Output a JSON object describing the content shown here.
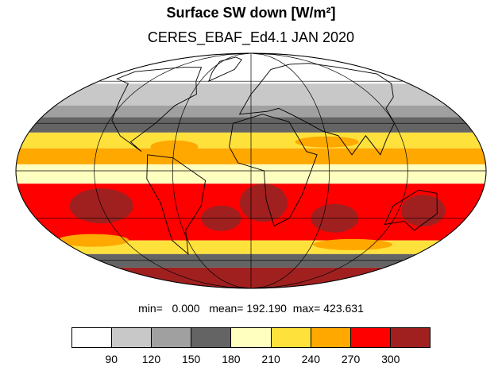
{
  "title": "Surface SW down [W/m²]",
  "subtitle": "CERES_EBAF_Ed4.1 JAN 2020",
  "stats": {
    "min_label": "min=",
    "min": "0.000",
    "mean_label": "mean=",
    "mean": "192.190",
    "max_label": "max=",
    "max": "423.631"
  },
  "colorbar": {
    "colors": [
      "#ffffff",
      "#c8c8c8",
      "#a0a0a0",
      "#646464",
      "#ffffc0",
      "#ffe13c",
      "#ffa800",
      "#ff0000",
      "#a02020"
    ],
    "ticks": [
      "90",
      "120",
      "150",
      "180",
      "210",
      "240",
      "270",
      "300"
    ]
  },
  "map": {
    "projection": "mollweide",
    "bands": [
      {
        "lat_top": 90,
        "lat_bottom": 58,
        "color": "#ffffff"
      },
      {
        "lat_top": 58,
        "lat_bottom": 42,
        "color": "#c8c8c8"
      },
      {
        "lat_top": 42,
        "lat_bottom": 34,
        "color": "#a0a0a0"
      },
      {
        "lat_top": 34,
        "lat_bottom": 24,
        "color": "#646464"
      },
      {
        "lat_top": 24,
        "lat_bottom": 14,
        "color": "#ffe13c"
      },
      {
        "lat_top": 14,
        "lat_bottom": 4,
        "color": "#ffa800"
      },
      {
        "lat_top": 4,
        "lat_bottom": -8,
        "color": "#ffffc0"
      },
      {
        "lat_top": -8,
        "lat_bottom": -45,
        "color": "#ff0000"
      },
      {
        "lat_top": -45,
        "lat_bottom": -55,
        "color": "#ffe13c"
      },
      {
        "lat_top": -55,
        "lat_bottom": -66,
        "color": "#646464"
      },
      {
        "lat_top": -66,
        "lat_bottom": -90,
        "color": "#a02020"
      }
    ]
  }
}
